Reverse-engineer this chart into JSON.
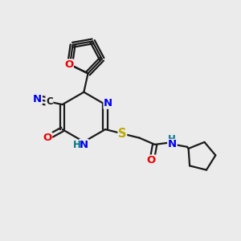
{
  "bg_color": "#ebebeb",
  "bond_color": "#1a1a1a",
  "bond_width": 1.6,
  "atom_colors": {
    "C": "#1a1a1a",
    "N": "#0000ee",
    "O": "#ee0000",
    "S": "#bbaa00",
    "H": "#007788"
  },
  "font_size": 8.5,
  "figsize": [
    3.0,
    3.0
  ],
  "dpi": 100,
  "xlim": [
    0,
    10
  ],
  "ylim": [
    0,
    10
  ]
}
